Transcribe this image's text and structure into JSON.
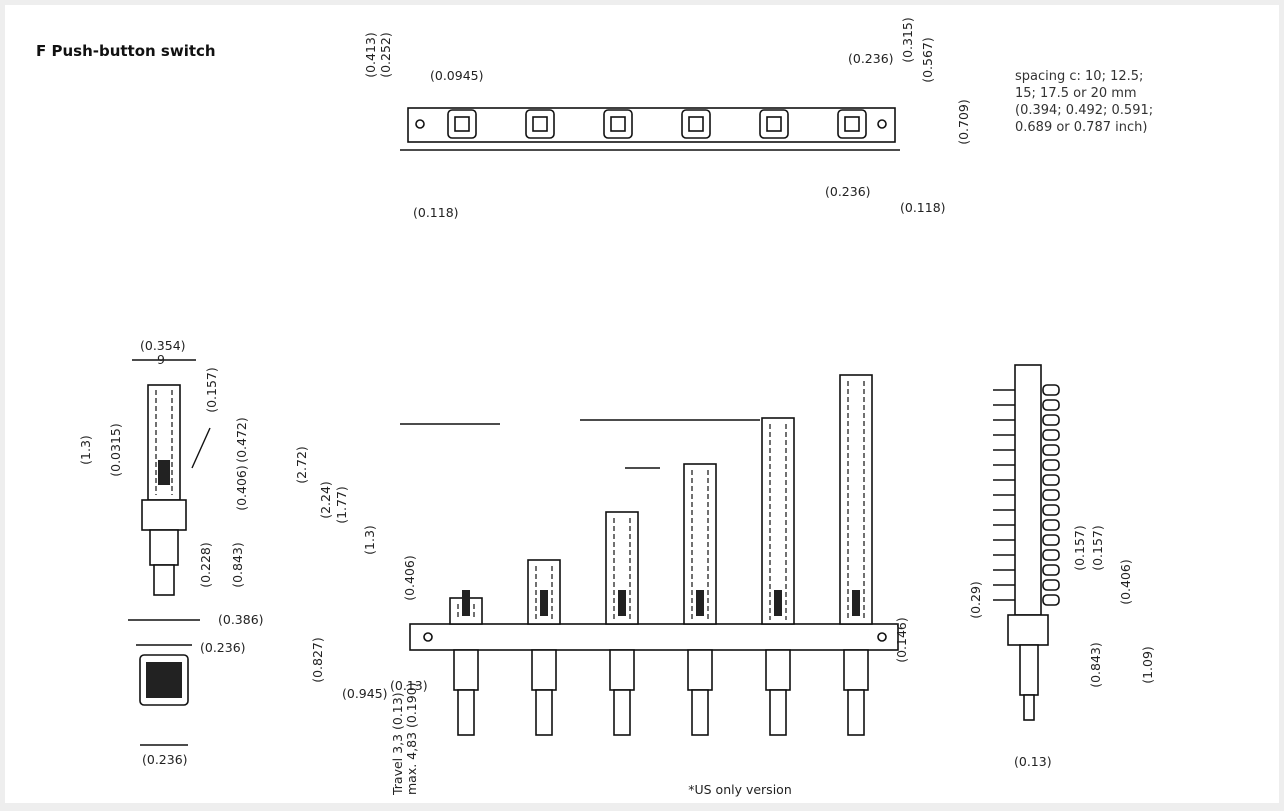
{
  "title": "F Push-button switch",
  "spacing_note": [
    "spacing c: 10; 12.5;",
    "15; 17.5 or 20 mm",
    "(0.394; 0.492; 0.591;",
    "0.689 or 0.787 inch)"
  ],
  "top_view": {
    "labels": [
      "(0.413)",
      "(0.252)",
      "(0.0945)",
      "(0.236)",
      "(0.315)",
      "(0.567)",
      "(0.709)",
      "(0.236)",
      "(0.118)",
      "(0.118)"
    ]
  },
  "side_view": {
    "labels": [
      "(0.354)",
      "9",
      "(0.157)",
      "(1.3)",
      "(0.0315)",
      "(0.472)",
      "(0.406)",
      "(0.228)",
      "(0.843)",
      "(0.386)",
      "(0.236)",
      "(0.236)"
    ]
  },
  "front_view": {
    "labels": [
      "(2.72)",
      "(2.24)",
      "(1.77)",
      "(1.3)",
      "(0.406)",
      "(0.827)",
      "(0.945)",
      "(0.13)",
      "(0.146)"
    ],
    "travel": [
      "Travel 3,3 (0.13)",
      "max. 4,83 (0.190)"
    ]
  },
  "end_view": {
    "labels": [
      "(0.29)",
      "(0.157)",
      "(0.157)",
      "(0.406)",
      "(0.843)",
      "(1.09)",
      "(0.13)"
    ]
  },
  "footnote": "*US only version"
}
